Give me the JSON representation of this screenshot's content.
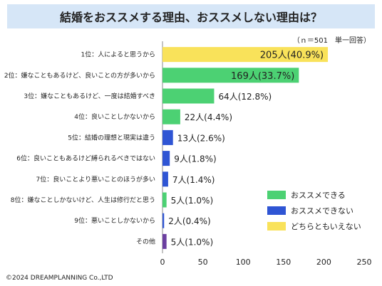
{
  "title": "結婚をおススメする理由、おススメしない理由は？",
  "note": "（ｎ＝501　単一回答）",
  "copyright": "©2024 DREAMPLANNING Co.,LTD",
  "colors": {
    "recommend": "#4cd173",
    "not_recommend": "#2f55d4",
    "neither": "#f9e25a",
    "other": "#6b3fa0"
  },
  "chart_data": {
    "type": "bar",
    "orientation": "horizontal",
    "categories": [
      "1位：人によると思うから",
      "2位：嫌なこともあるけど、良いことの方が多いから",
      "3位：嫌なこともあるけど、一度は結婚すべき",
      "4位：良いことしかないから",
      "5位：結婚の理想と現実は違う",
      "6位：良いこともあるけど縛られるべきではない",
      "7位：良いことより悪いことのほうが多い",
      "8位：嫌なことしかないけど、人生は修行だと思う",
      "9位：悪いことしかないから",
      "その他"
    ],
    "values": [
      205,
      169,
      64,
      22,
      13,
      9,
      7,
      5,
      2,
      5
    ],
    "labels": [
      "205人(40.9%)",
      "169人(33.7%)",
      "64人(12.8%)",
      "22人(4.4%)",
      "13人(2.6%)",
      "9人(1.8%)",
      "7人(1.4%)",
      "5人(1.0%)",
      "2人(0.4%)",
      "5人(1.0%)"
    ],
    "groups": [
      "neither",
      "recommend",
      "recommend",
      "recommend",
      "not_recommend",
      "not_recommend",
      "not_recommend",
      "recommend",
      "not_recommend",
      "other"
    ],
    "xlim": [
      0,
      250
    ],
    "xticks": [
      0,
      50,
      100,
      150,
      200,
      250
    ],
    "legend": {
      "position": "bottom-right",
      "entries": [
        {
          "key": "recommend",
          "label": "おススメできる"
        },
        {
          "key": "not_recommend",
          "label": "おススメできない"
        },
        {
          "key": "neither",
          "label": "どちらともいえない"
        }
      ]
    }
  }
}
